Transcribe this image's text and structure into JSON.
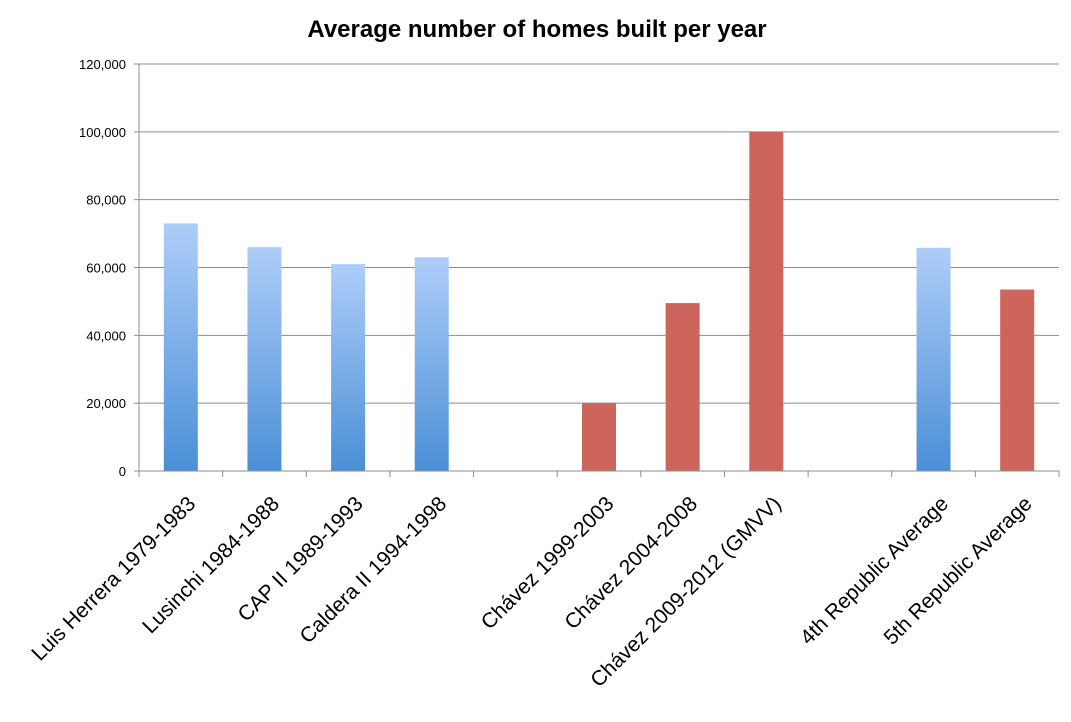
{
  "chart_data": {
    "type": "bar",
    "title": "Average number of homes built per year",
    "xlabel": "",
    "ylabel": "",
    "ylim": [
      0,
      120000
    ],
    "yticks": [
      0,
      20000,
      40000,
      60000,
      80000,
      100000,
      120000
    ],
    "ytick_labels": [
      "0",
      "20,000",
      "40,000",
      "60,000",
      "80,000",
      "100,000",
      "120,000"
    ],
    "grid": true,
    "legend": "none",
    "categories": [
      "Luis Herrera 1979-1983",
      "Lusinchi 1984-1988",
      "CAP II 1989-1993",
      "Caldera II 1994-1998",
      "",
      "Chávez 1999-2003",
      "Chávez 2004-2008",
      "Chávez 2009-2012 (GMVV)",
      "",
      "4th Republic Average",
      "5th Republic Average"
    ],
    "values": [
      73000,
      66000,
      61000,
      63000,
      null,
      20000,
      49500,
      100000,
      null,
      65800,
      53500
    ],
    "bar_styles": [
      "blue",
      "blue",
      "blue",
      "blue",
      null,
      "red",
      "red",
      "red",
      null,
      "blue",
      "red"
    ],
    "colors": {
      "blue_top": "#aecdf9",
      "blue_bottom": "#4a8fd6",
      "red": "#cd655d",
      "grid": "#8c8c8c",
      "axis": "#8c8c8c"
    }
  }
}
